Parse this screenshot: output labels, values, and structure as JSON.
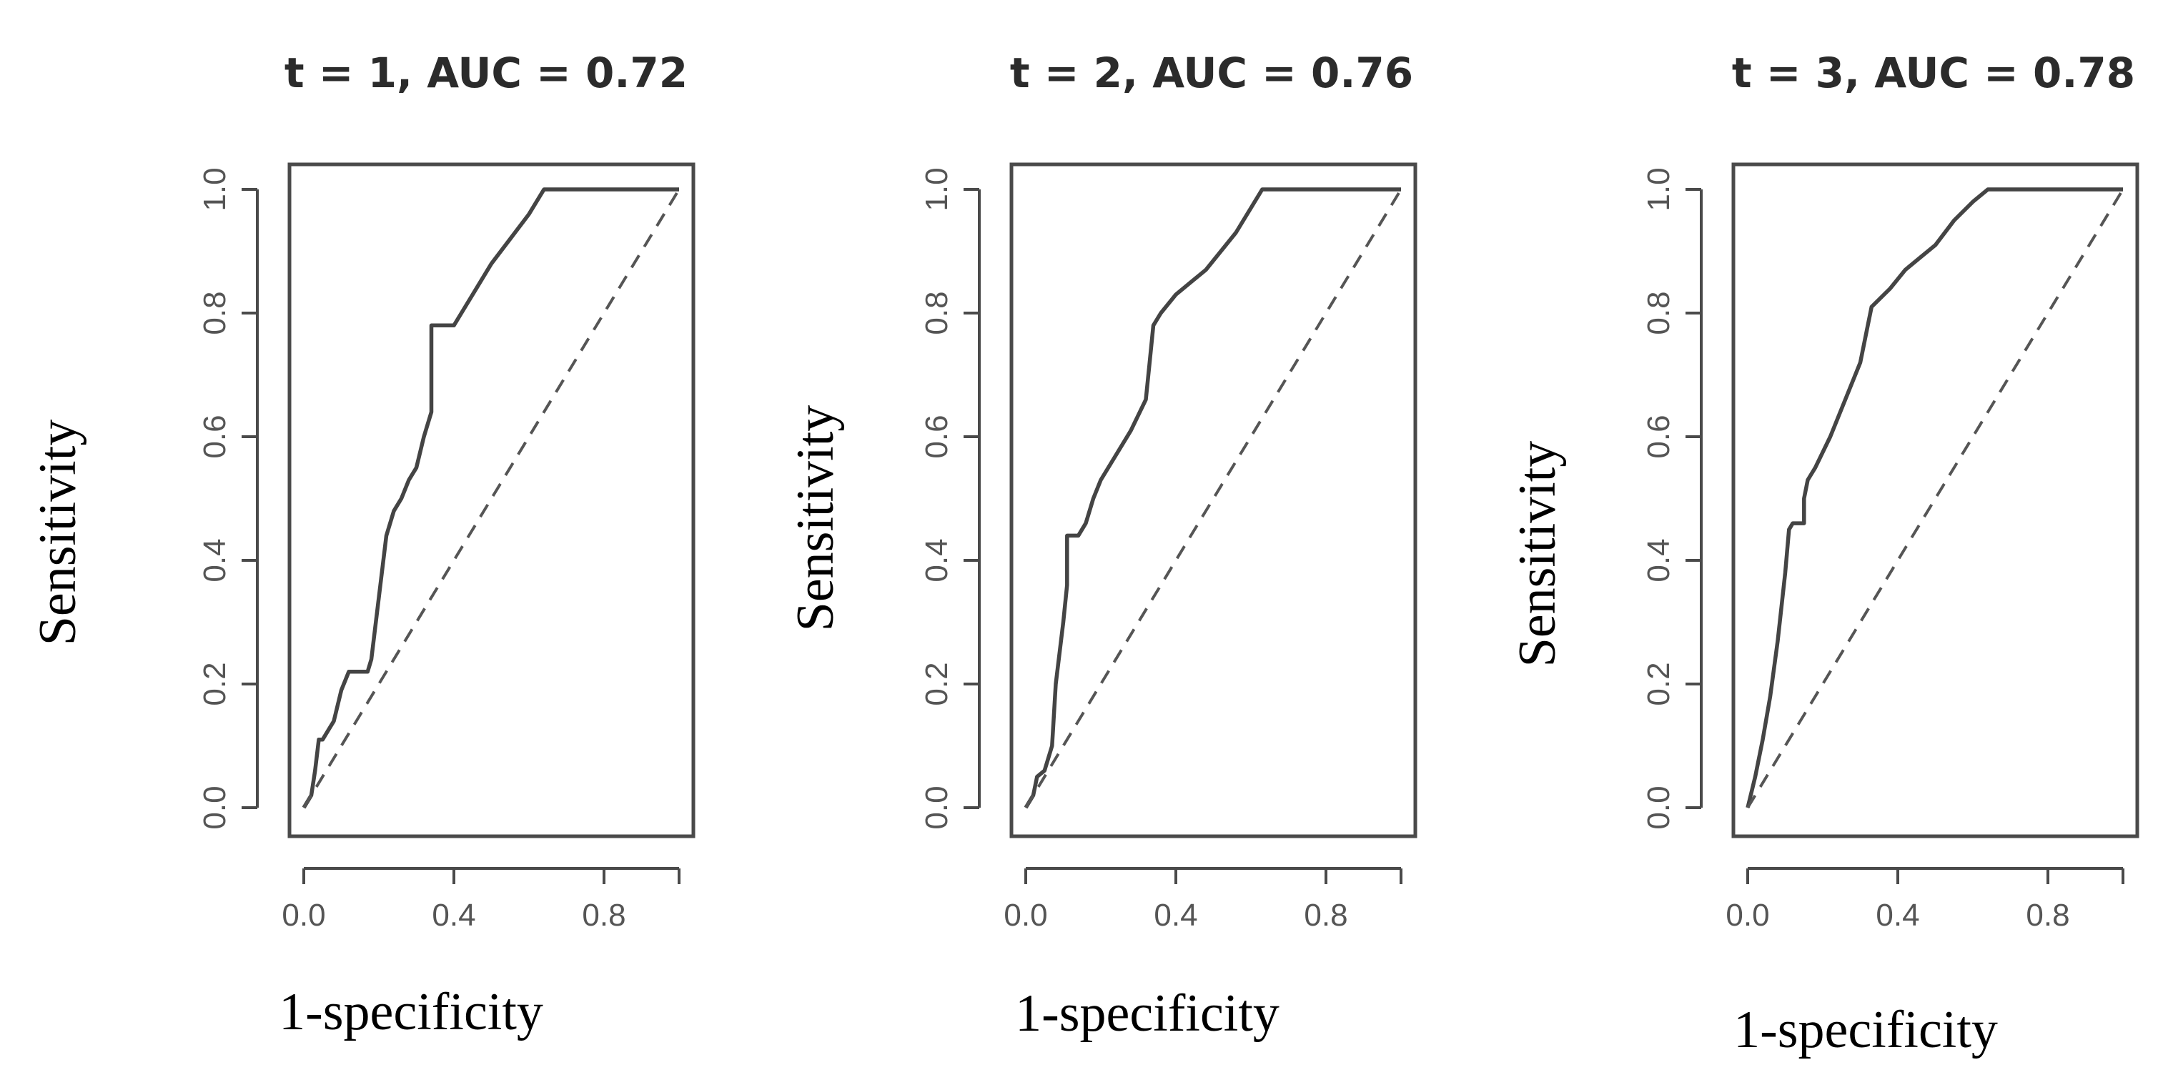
{
  "chart_data": [
    {
      "type": "line",
      "title": "t = 1, AUC = 0.72",
      "xlabel": "1-specificity",
      "ylabel": "Sensitivity",
      "xlim": [
        0,
        1
      ],
      "ylim": [
        0,
        1
      ],
      "x_ticks": [
        0.0,
        0.4,
        0.8
      ],
      "x_tick_labels": [
        "0.0",
        "0.4",
        "0.8"
      ],
      "y_ticks": [
        0.0,
        0.2,
        0.4,
        0.6,
        0.8,
        1.0
      ],
      "y_tick_labels": [
        "0.0",
        "0.2",
        "0.4",
        "0.6",
        "0.8",
        "1.0"
      ],
      "series": [
        {
          "name": "ROC",
          "style": "solid",
          "x": [
            0.0,
            0.02,
            0.03,
            0.04,
            0.05,
            0.06,
            0.08,
            0.1,
            0.12,
            0.14,
            0.16,
            0.17,
            0.18,
            0.2,
            0.22,
            0.24,
            0.26,
            0.28,
            0.3,
            0.32,
            0.34,
            0.34,
            0.38,
            0.4,
            0.42,
            0.46,
            0.5,
            0.55,
            0.6,
            0.64,
            0.7,
            0.8,
            0.9,
            1.0
          ],
          "y": [
            0.0,
            0.02,
            0.06,
            0.11,
            0.11,
            0.12,
            0.14,
            0.19,
            0.22,
            0.22,
            0.22,
            0.22,
            0.24,
            0.34,
            0.44,
            0.48,
            0.5,
            0.53,
            0.55,
            0.6,
            0.64,
            0.78,
            0.78,
            0.78,
            0.8,
            0.84,
            0.88,
            0.92,
            0.96,
            1.0,
            1.0,
            1.0,
            1.0,
            1.0
          ]
        },
        {
          "name": "Reference",
          "style": "dashed",
          "x": [
            0,
            1
          ],
          "y": [
            0,
            1
          ]
        }
      ]
    },
    {
      "type": "line",
      "title": "t = 2, AUC = 0.76",
      "xlabel": "1-specificity",
      "ylabel": "Sensitivity",
      "xlim": [
        0,
        1
      ],
      "ylim": [
        0,
        1
      ],
      "x_ticks": [
        0.0,
        0.4,
        0.8
      ],
      "x_tick_labels": [
        "0.0",
        "0.4",
        "0.8"
      ],
      "y_ticks": [
        0.0,
        0.2,
        0.4,
        0.6,
        0.8,
        1.0
      ],
      "y_tick_labels": [
        "0.0",
        "0.2",
        "0.4",
        "0.6",
        "0.8",
        "1.0"
      ],
      "series": [
        {
          "name": "ROC",
          "style": "solid",
          "x": [
            0.0,
            0.02,
            0.03,
            0.05,
            0.07,
            0.08,
            0.1,
            0.11,
            0.11,
            0.14,
            0.16,
            0.18,
            0.2,
            0.24,
            0.28,
            0.32,
            0.33,
            0.34,
            0.36,
            0.4,
            0.44,
            0.48,
            0.52,
            0.56,
            0.6,
            0.63,
            0.7,
            0.8,
            0.9,
            1.0
          ],
          "y": [
            0.0,
            0.02,
            0.05,
            0.06,
            0.1,
            0.2,
            0.3,
            0.36,
            0.44,
            0.44,
            0.46,
            0.5,
            0.53,
            0.57,
            0.61,
            0.66,
            0.72,
            0.78,
            0.8,
            0.83,
            0.85,
            0.87,
            0.9,
            0.93,
            0.97,
            1.0,
            1.0,
            1.0,
            1.0,
            1.0
          ]
        },
        {
          "name": "Reference",
          "style": "dashed",
          "x": [
            0,
            1
          ],
          "y": [
            0,
            1
          ]
        }
      ]
    },
    {
      "type": "line",
      "title": "t = 3, AUC = 0.78",
      "xlabel": "1-specificity",
      "ylabel": "Sensitivity",
      "xlim": [
        0,
        1
      ],
      "ylim": [
        0,
        1
      ],
      "x_ticks": [
        0.0,
        0.4,
        0.8
      ],
      "x_tick_labels": [
        "0.0",
        "0.4",
        "0.8"
      ],
      "y_ticks": [
        0.0,
        0.2,
        0.4,
        0.6,
        0.8,
        1.0
      ],
      "y_tick_labels": [
        "0.0",
        "0.2",
        "0.4",
        "0.6",
        "0.8",
        "1.0"
      ],
      "series": [
        {
          "name": "ROC",
          "style": "solid",
          "x": [
            0.0,
            0.02,
            0.04,
            0.06,
            0.08,
            0.1,
            0.11,
            0.12,
            0.15,
            0.15,
            0.16,
            0.18,
            0.22,
            0.26,
            0.3,
            0.32,
            0.33,
            0.38,
            0.42,
            0.46,
            0.5,
            0.55,
            0.6,
            0.64,
            0.7,
            0.8,
            0.9,
            1.0
          ],
          "y": [
            0.0,
            0.05,
            0.11,
            0.18,
            0.27,
            0.38,
            0.45,
            0.46,
            0.46,
            0.5,
            0.53,
            0.55,
            0.6,
            0.66,
            0.72,
            0.78,
            0.81,
            0.84,
            0.87,
            0.89,
            0.91,
            0.95,
            0.98,
            1.0,
            1.0,
            1.0,
            1.0,
            1.0
          ]
        },
        {
          "name": "Reference",
          "style": "dashed",
          "x": [
            0,
            1
          ],
          "y": [
            0,
            1
          ]
        }
      ]
    }
  ]
}
